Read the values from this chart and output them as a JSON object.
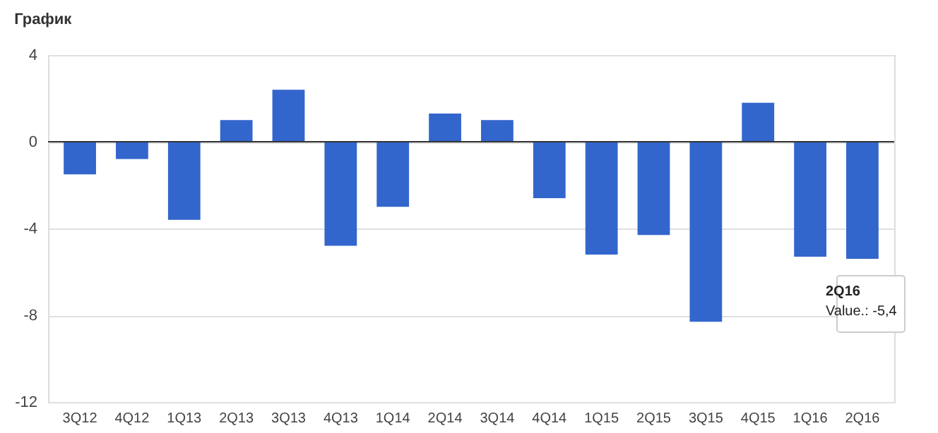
{
  "chart_data": {
    "type": "bar",
    "title": "График",
    "categories": [
      "3Q12",
      "4Q12",
      "1Q13",
      "2Q13",
      "3Q13",
      "4Q13",
      "1Q14",
      "2Q14",
      "3Q14",
      "4Q14",
      "1Q15",
      "2Q15",
      "3Q15",
      "4Q15",
      "1Q16",
      "2Q16"
    ],
    "series": [
      {
        "color": "#3366cc",
        "values": [
          -1.5,
          -0.8,
          -3.6,
          1.0,
          2.4,
          -4.8,
          -3.0,
          1.3,
          1.0,
          -2.6,
          -5.2,
          -4.3,
          -8.3,
          1.8,
          -5.3,
          -5.4
        ]
      }
    ],
    "ylim": [
      -12,
      4
    ],
    "yticks": [
      4,
      0,
      -4,
      -8,
      -12
    ],
    "grid": "y",
    "ref_lines": [
      {
        "axis": "y",
        "value": 0,
        "color": "#333333"
      }
    ],
    "annotations": [
      {
        "text": "2Q16\nValue.: -5,4",
        "x": "2Q16",
        "y": -5.4
      }
    ]
  }
}
